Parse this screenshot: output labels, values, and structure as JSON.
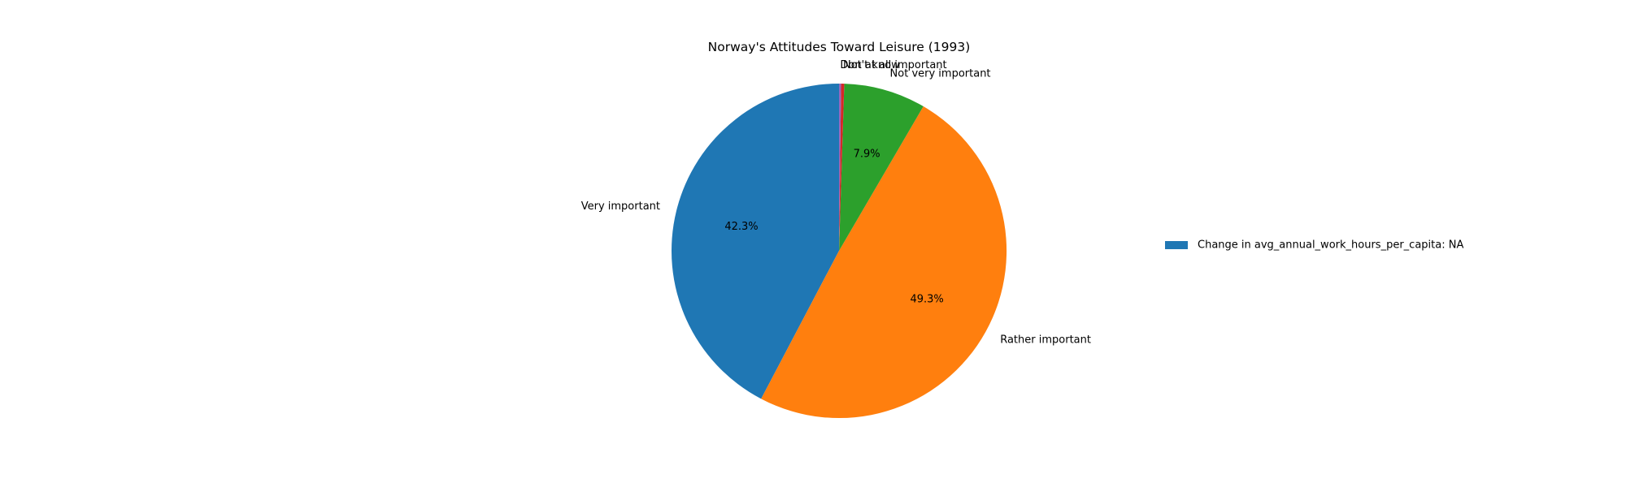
{
  "chart_data": {
    "type": "pie",
    "title": "Norway's Attitudes Toward Leisure (1993)",
    "start_angle_deg": 90,
    "direction": "counterclockwise",
    "slices": [
      {
        "label": "Very important",
        "value": 42.3,
        "pct_label": "42.3%",
        "color": "#1f77b4"
      },
      {
        "label": "Rather important",
        "value": 49.3,
        "pct_label": "49.3%",
        "color": "#ff7f0e"
      },
      {
        "label": "Not very important",
        "value": 7.9,
        "pct_label": "7.9%",
        "color": "#2ca02c"
      },
      {
        "label": "Not at all important",
        "value": 0.3,
        "pct_label": "",
        "color": "#d62728"
      },
      {
        "label": "Don't know",
        "value": 0.2,
        "pct_label": "",
        "color": "#9467bd"
      }
    ],
    "legend": {
      "placement": "right",
      "entries": [
        {
          "label": "Change in avg_annual_work_hours_per_capita: NA",
          "color": "#1f77b4"
        }
      ]
    }
  }
}
